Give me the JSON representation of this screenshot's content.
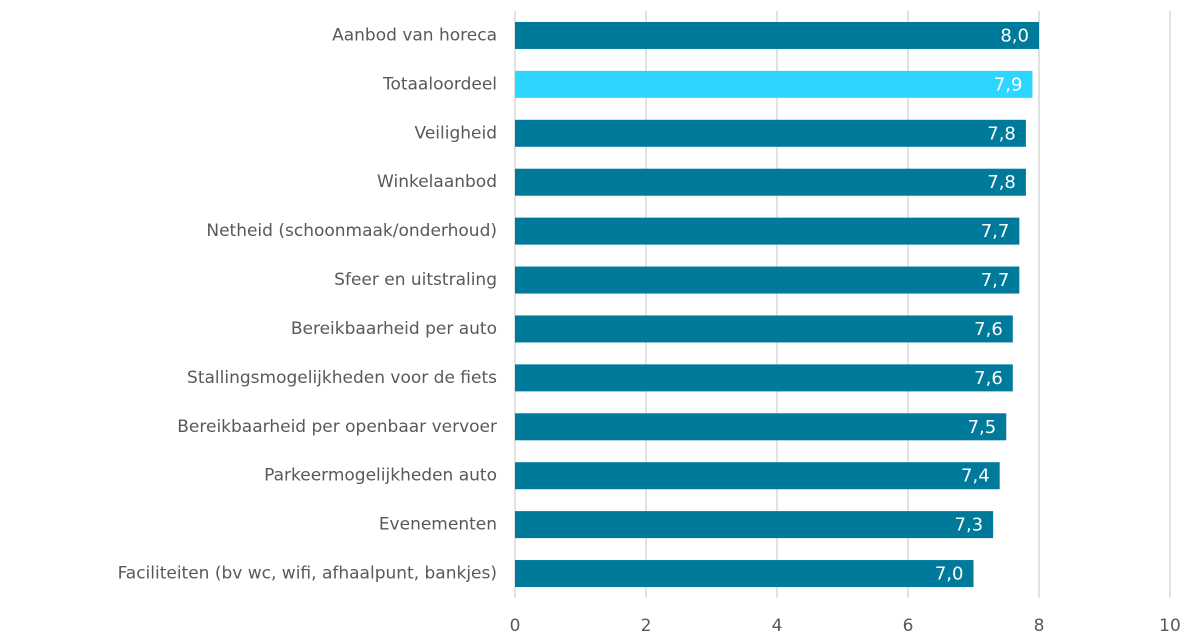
{
  "chart_data": {
    "type": "barh",
    "categories": [
      "Aanbod van horeca",
      "Totaaloordeel",
      "Veiligheid",
      "Winkelaanbod",
      "Netheid (schoonmaak/onderhoud)",
      "Sfeer en uitstraling",
      "Bereikbaarheid per auto",
      "Stallingsmogelijkheden voor de fiets",
      "Bereikbaarheid per openbaar vervoer",
      "Parkeermogelijkheden auto",
      "Evenementen",
      "Faciliteiten (bv wc, wifi, afhaalpunt, bankjes)"
    ],
    "values": [
      8.0,
      7.9,
      7.8,
      7.8,
      7.7,
      7.7,
      7.6,
      7.6,
      7.5,
      7.4,
      7.3,
      7.0
    ],
    "value_labels": [
      "8,0",
      "7,9",
      "7,8",
      "7,8",
      "7,7",
      "7,7",
      "7,6",
      "7,6",
      "7,5",
      "7,4",
      "7,3",
      "7,0"
    ],
    "colors": [
      "#007a9b",
      "#2ed5ff",
      "#007a9b",
      "#007a9b",
      "#007a9b",
      "#007a9b",
      "#007a9b",
      "#007a9b",
      "#007a9b",
      "#007a9b",
      "#007a9b",
      "#007a9b"
    ],
    "xlim": [
      0,
      10
    ],
    "xticks": [
      0,
      2,
      4,
      6,
      8,
      10
    ],
    "grid": true
  }
}
